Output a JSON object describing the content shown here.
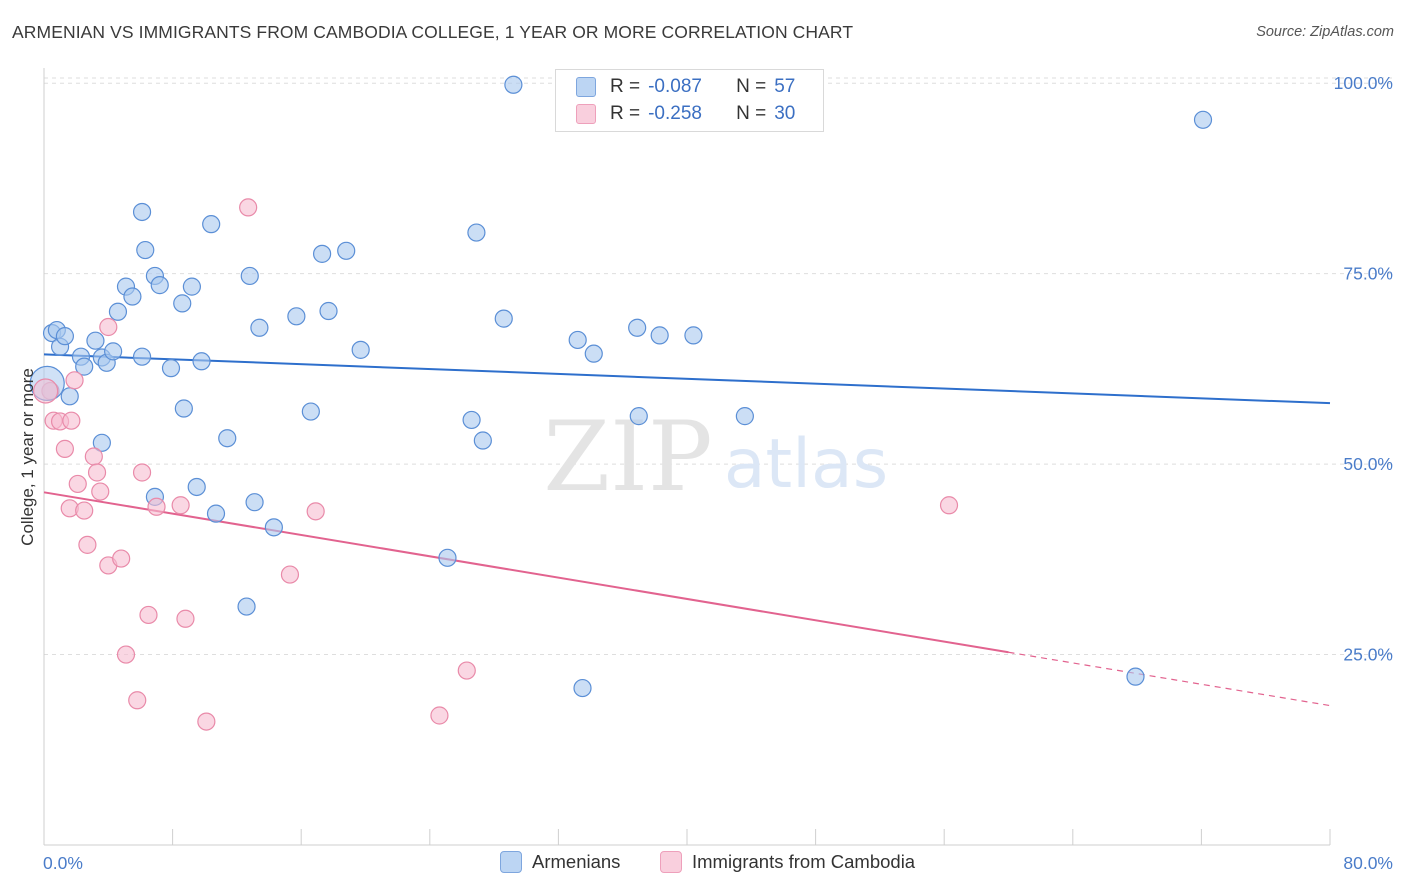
{
  "title": "ARMENIAN VS IMMIGRANTS FROM CAMBODIA COLLEGE, 1 YEAR OR MORE CORRELATION CHART",
  "source": "Source: ZipAtlas.com",
  "watermark": {
    "zip": "ZIP",
    "atlas": "atlas"
  },
  "legend": {
    "armenians": {
      "r_label": "R =",
      "r_value": "-0.087",
      "n_label": "N =",
      "n_value": "57"
    },
    "cambodia": {
      "r_label": "R =",
      "r_value": "-0.258",
      "n_label": "N =",
      "n_value": "30"
    }
  },
  "bottom_legend": {
    "armenians": "Armenians",
    "cambodia": "Immigrants from Cambodia"
  },
  "colors": {
    "blue_fill": "#a9c8ee",
    "blue_stroke": "#5b8fd6",
    "blue_line": "#2e6fcc",
    "pink_fill": "#f6bdd0",
    "pink_stroke": "#e98aa9",
    "pink_line": "#e2638f",
    "grid": "#dedede",
    "axis_text": "#4a7cc9"
  },
  "chart_data": {
    "type": "scatter",
    "title": "ARMENIAN VS IMMIGRANTS FROM CAMBODIA COLLEGE, 1 YEAR OR MORE CORRELATION CHART",
    "xlabel": "",
    "ylabel": "College, 1 year or more",
    "xlim": [
      0,
      80
    ],
    "ylim": [
      0,
      102
    ],
    "x_tick_labels": [
      "0.0%",
      "80.0%"
    ],
    "y_ticks": [
      25,
      50,
      75,
      100
    ],
    "y_tick_labels": [
      "25.0%",
      "50.0%",
      "75.0%",
      "100.0%"
    ],
    "series": [
      {
        "name": "Armenians",
        "R": -0.087,
        "N": 57,
        "trend": {
          "x0": 0,
          "y0": 64.4,
          "x1": 80,
          "y1": 58.0
        },
        "points": [
          [
            0.5,
            67.2
          ],
          [
            0.8,
            67.6
          ],
          [
            1.0,
            65.4
          ],
          [
            1.3,
            66.8
          ],
          [
            1.6,
            58.9
          ],
          [
            2.3,
            64.1
          ],
          [
            2.5,
            62.8
          ],
          [
            3.2,
            66.2
          ],
          [
            3.6,
            64.0
          ],
          [
            3.6,
            52.8
          ],
          [
            3.9,
            63.3
          ],
          [
            4.3,
            64.8
          ],
          [
            4.6,
            70.0
          ],
          [
            5.1,
            73.3
          ],
          [
            5.5,
            72.0
          ],
          [
            6.1,
            64.1
          ],
          [
            6.1,
            83.1
          ],
          [
            6.3,
            78.1
          ],
          [
            6.9,
            74.7
          ],
          [
            6.9,
            45.7
          ],
          [
            7.2,
            73.5
          ],
          [
            7.9,
            62.6
          ],
          [
            8.6,
            71.1
          ],
          [
            8.7,
            57.3
          ],
          [
            9.2,
            73.3
          ],
          [
            9.5,
            47.0
          ],
          [
            9.8,
            63.5
          ],
          [
            10.4,
            81.5
          ],
          [
            10.7,
            43.5
          ],
          [
            11.4,
            53.4
          ],
          [
            12.6,
            31.3
          ],
          [
            12.8,
            74.7
          ],
          [
            13.1,
            45.0
          ],
          [
            13.4,
            67.9
          ],
          [
            14.3,
            41.7
          ],
          [
            15.7,
            69.4
          ],
          [
            16.6,
            56.9
          ],
          [
            17.3,
            77.6
          ],
          [
            17.7,
            70.1
          ],
          [
            18.8,
            78.0
          ],
          [
            19.7,
            65.0
          ],
          [
            26.6,
            55.8
          ],
          [
            26.9,
            80.4
          ],
          [
            27.3,
            53.1
          ],
          [
            28.6,
            69.1
          ],
          [
            29.2,
            99.8
          ],
          [
            33.2,
            66.3
          ],
          [
            33.5,
            20.6
          ],
          [
            34.2,
            64.5
          ],
          [
            36.9,
            67.9
          ],
          [
            37.0,
            56.3
          ],
          [
            38.3,
            66.9
          ],
          [
            40.4,
            66.9
          ],
          [
            43.6,
            56.3
          ],
          [
            72.1,
            95.2
          ],
          [
            67.9,
            22.1
          ],
          [
            25.1,
            37.7
          ]
        ]
      },
      {
        "name": "Immigrants from Cambodia",
        "R": -0.258,
        "N": 30,
        "trend": {
          "x0": 0,
          "y0": 46.3,
          "x1": 60,
          "y1": 25.3,
          "dash_x1": 80,
          "dash_y1": 18.3
        },
        "points": [
          [
            0.4,
            59.6
          ],
          [
            0.6,
            55.7
          ],
          [
            1.0,
            55.6
          ],
          [
            1.3,
            52.0
          ],
          [
            1.6,
            44.2
          ],
          [
            1.7,
            55.7
          ],
          [
            1.9,
            61.0
          ],
          [
            2.1,
            47.4
          ],
          [
            2.5,
            43.9
          ],
          [
            2.7,
            39.4
          ],
          [
            3.1,
            51.0
          ],
          [
            3.3,
            48.9
          ],
          [
            3.5,
            46.4
          ],
          [
            4.0,
            36.7
          ],
          [
            4.0,
            68.0
          ],
          [
            4.8,
            37.6
          ],
          [
            5.1,
            25.0
          ],
          [
            5.8,
            19.0
          ],
          [
            6.1,
            48.9
          ],
          [
            6.5,
            30.2
          ],
          [
            7.0,
            44.4
          ],
          [
            8.5,
            44.6
          ],
          [
            8.8,
            29.7
          ],
          [
            10.1,
            16.2
          ],
          [
            12.7,
            83.7
          ],
          [
            15.3,
            35.5
          ],
          [
            16.9,
            43.8
          ],
          [
            24.6,
            17.0
          ],
          [
            26.3,
            22.9
          ],
          [
            56.3,
            44.6
          ]
        ]
      }
    ]
  }
}
